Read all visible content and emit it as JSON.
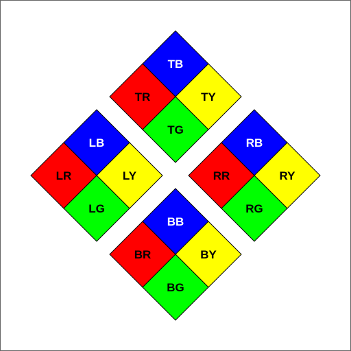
{
  "colors": {
    "blue": "#0000ff",
    "red": "#ff0000",
    "yellow": "#ffff00",
    "green": "#00ff00",
    "outline": "#000000",
    "text_on_blue": "#ffffff",
    "text_default": "#000000"
  },
  "diamonds": [
    {
      "id": "top",
      "cells": [
        {
          "pos": "top",
          "label": "TB",
          "color": "blue"
        },
        {
          "pos": "left",
          "label": "TR",
          "color": "red"
        },
        {
          "pos": "right",
          "label": "TY",
          "color": "yellow"
        },
        {
          "pos": "bottom",
          "label": "TG",
          "color": "green"
        }
      ]
    },
    {
      "id": "left",
      "cells": [
        {
          "pos": "top",
          "label": "LB",
          "color": "blue"
        },
        {
          "pos": "left",
          "label": "LR",
          "color": "red"
        },
        {
          "pos": "right",
          "label": "LY",
          "color": "yellow"
        },
        {
          "pos": "bottom",
          "label": "LG",
          "color": "green"
        }
      ]
    },
    {
      "id": "right",
      "cells": [
        {
          "pos": "top",
          "label": "RB",
          "color": "blue"
        },
        {
          "pos": "left",
          "label": "RR",
          "color": "red"
        },
        {
          "pos": "right",
          "label": "RY",
          "color": "yellow"
        },
        {
          "pos": "bottom",
          "label": "RG",
          "color": "green"
        }
      ]
    },
    {
      "id": "bottom",
      "cells": [
        {
          "pos": "top",
          "label": "BB",
          "color": "blue"
        },
        {
          "pos": "left",
          "label": "BR",
          "color": "red"
        },
        {
          "pos": "right",
          "label": "BY",
          "color": "yellow"
        },
        {
          "pos": "bottom",
          "label": "BG",
          "color": "green"
        }
      ]
    }
  ]
}
